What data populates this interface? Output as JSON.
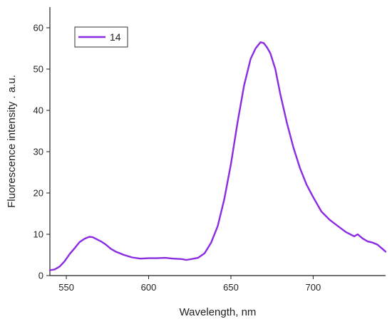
{
  "chart_data": {
    "type": "line",
    "title": "",
    "xlabel": "Wavelength, nm",
    "ylabel": "Fluorescence intensity . a.u.",
    "xlim": [
      540,
      744
    ],
    "ylim": [
      0,
      65
    ],
    "xticks": [
      550,
      600,
      650,
      700
    ],
    "yticks": [
      0,
      10,
      20,
      30,
      40,
      50,
      60
    ],
    "grid": false,
    "legend_position": "top-left",
    "series": [
      {
        "name": "14",
        "color": "#8B2BE2",
        "x": [
          540,
          543,
          546,
          549,
          552,
          555,
          558,
          561,
          564,
          566,
          568,
          571,
          574,
          577,
          580,
          585,
          590,
          595,
          600,
          605,
          610,
          615,
          620,
          623,
          626,
          630,
          634,
          638,
          642,
          646,
          650,
          654,
          658,
          662,
          665,
          668,
          670,
          672,
          674,
          677,
          680,
          684,
          688,
          692,
          696,
          700,
          705,
          710,
          715,
          720,
          725,
          727,
          730,
          733,
          736,
          739,
          742,
          744
        ],
        "y": [
          1.3,
          1.5,
          2.2,
          3.5,
          5.2,
          6.6,
          8.1,
          8.9,
          9.4,
          9.3,
          8.9,
          8.3,
          7.5,
          6.5,
          5.8,
          5.0,
          4.4,
          4.1,
          4.2,
          4.2,
          4.3,
          4.1,
          4.0,
          3.8,
          4.0,
          4.3,
          5.4,
          8.0,
          12.0,
          18.5,
          27.0,
          37.0,
          46.0,
          52.5,
          55.0,
          56.5,
          56.3,
          55.2,
          53.8,
          50.0,
          44.0,
          37.0,
          31.0,
          26.0,
          22.0,
          19.0,
          15.5,
          13.5,
          12.0,
          10.5,
          9.5,
          10.0,
          9.0,
          8.3,
          8.0,
          7.5,
          6.5,
          5.8
        ]
      }
    ]
  }
}
